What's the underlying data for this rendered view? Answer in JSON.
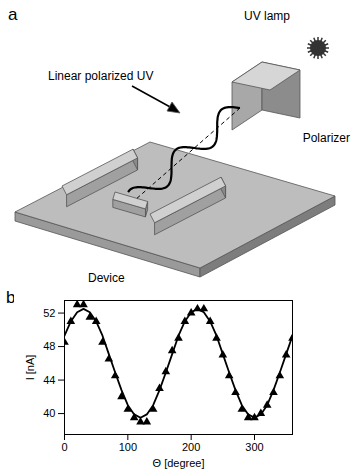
{
  "diagram": {
    "panel": "a",
    "labels": {
      "lamp": "UV lamp",
      "beam": "Linear polarized UV",
      "polarizer": "Polarizer",
      "device": "Device"
    }
  },
  "chart_data": {
    "panel": "b",
    "type": "line",
    "xlabel": "Θ [degree]",
    "ylabel": "I [nA]",
    "xlim": [
      0,
      360
    ],
    "xticks": [
      0,
      100,
      200,
      300
    ],
    "ylim": [
      37.5,
      53.5
    ],
    "yticks": [
      40,
      44,
      48,
      52
    ],
    "grid": false,
    "series": [
      {
        "type": "scatter",
        "marker": "triangle",
        "color": "#000000",
        "x": [
          0,
          10,
          20,
          30,
          40,
          50,
          60,
          70,
          80,
          90,
          100,
          110,
          120,
          130,
          140,
          150,
          160,
          170,
          180,
          190,
          200,
          210,
          220,
          230,
          240,
          250,
          260,
          270,
          280,
          290,
          300,
          310,
          320,
          330,
          340,
          350,
          360
        ],
        "values": [
          48.5,
          51,
          53,
          53,
          51.5,
          51,
          48.5,
          46.5,
          44.5,
          42,
          40.5,
          39.5,
          39,
          39,
          40.5,
          43,
          45,
          47.5,
          49,
          51,
          52,
          52.5,
          52.5,
          51,
          49,
          47,
          44.5,
          42.5,
          40.5,
          39.5,
          39.5,
          40,
          41,
          42.5,
          44.5,
          47,
          49
        ]
      },
      {
        "type": "line",
        "line_style": "solid",
        "color": "#000000",
        "x": [
          0,
          10,
          20,
          30,
          40,
          50,
          60,
          70,
          80,
          90,
          100,
          110,
          120,
          130,
          140,
          150,
          160,
          170,
          180,
          190,
          200,
          210,
          220,
          230,
          240,
          250,
          260,
          270,
          280,
          290,
          300,
          310,
          320,
          330,
          340,
          350,
          360
        ],
        "values": [
          49.3,
          51.0,
          52.1,
          52.5,
          52.1,
          51.0,
          49.3,
          47.1,
          44.9,
          42.8,
          41.0,
          39.9,
          39.5,
          39.9,
          41.0,
          42.8,
          44.9,
          47.1,
          49.3,
          51.0,
          52.1,
          52.5,
          52.1,
          51.0,
          49.3,
          47.1,
          44.9,
          42.8,
          41.0,
          39.9,
          39.5,
          39.9,
          41.0,
          42.8,
          44.9,
          47.1,
          49.3
        ]
      }
    ]
  }
}
